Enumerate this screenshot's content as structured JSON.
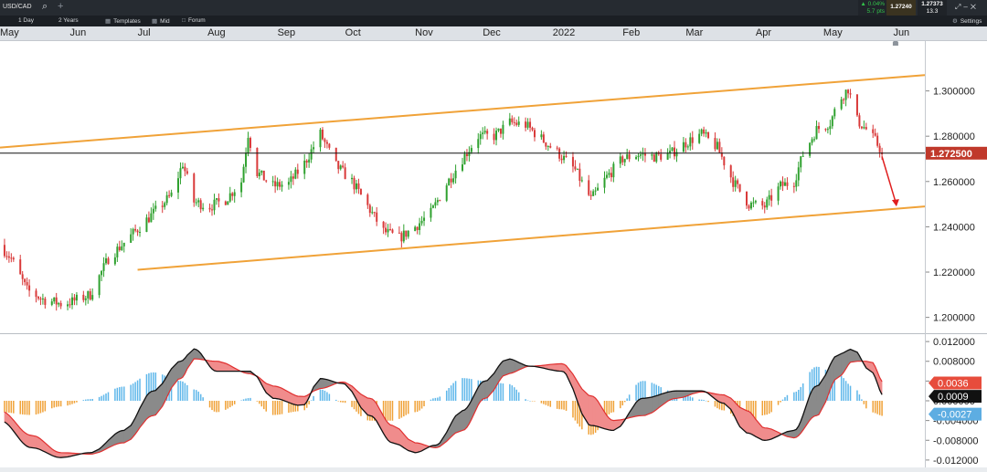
{
  "header": {
    "symbol": "USD/CAD",
    "change_pct": "0.04%",
    "change_pts": "5.7 pts",
    "bid": "1.27240",
    "ask": "1.27373",
    "spread": "13.3",
    "icons": [
      "search-icon",
      "plus-icon",
      "expand-icon",
      "close-icon",
      "gear-icon"
    ]
  },
  "toolbar": {
    "timeframe": "1 Day",
    "range": "2 Years",
    "templates": "Templates",
    "price_type": "Mid",
    "forum": "Forum",
    "settings": "Settings"
  },
  "colors": {
    "up": "#2fa12f",
    "down": "#d93a3a",
    "channel": "#f0a238",
    "current_line": "#111111",
    "price_tag": "#c0392b",
    "arrow": "#e01e1e",
    "macd_hist_pos": "#5fb7ea",
    "macd_hist_neg": "#f0a238",
    "macd_fill_up": "#8a8a8a",
    "macd_fill_down": "#f08c8c",
    "macd_line": "#111111",
    "signal_line": "#e03030"
  },
  "chart_data": [
    {
      "type": "candlestick",
      "x_axis": {
        "type": "date",
        "tick_labels": [
          "May",
          "Jun",
          "Jul",
          "Aug",
          "Sep",
          "Oct",
          "Nov",
          "Dec",
          "2022",
          "Feb",
          "Mar",
          "Apr",
          "May",
          "Jun"
        ],
        "range": [
          "2021-05-01",
          "2022-06-15"
        ]
      },
      "y_axis": {
        "ticks": [
          1.2,
          1.22,
          1.24,
          1.26,
          1.28,
          1.3
        ],
        "tick_labels": [
          "1.200000",
          "1.220000",
          "1.240000",
          "1.260000",
          "1.280000",
          "1.300000"
        ],
        "ylim": [
          1.193,
          1.322
        ],
        "position": "right"
      },
      "grid": false,
      "current_price": 1.2725,
      "current_price_label": "1.272500",
      "series": [
        {
          "name": "",
          "kind": "daily-candles",
          "path": [
            [
              "2021-05-01",
              1.232
            ],
            [
              "2021-05-06",
              1.226
            ],
            [
              "2021-05-13",
              1.212
            ],
            [
              "2021-05-20",
              1.208
            ],
            [
              "2021-05-28",
              1.206
            ],
            [
              "2021-06-02",
              1.207
            ],
            [
              "2021-06-10",
              1.21
            ],
            [
              "2021-06-18",
              1.226
            ],
            [
              "2021-06-25",
              1.233
            ],
            [
              "2021-07-02",
              1.24
            ],
            [
              "2021-07-09",
              1.247
            ],
            [
              "2021-07-16",
              1.254
            ],
            [
              "2021-07-21",
              1.268
            ],
            [
              "2021-07-26",
              1.251
            ],
            [
              "2021-08-02",
              1.249
            ],
            [
              "2021-08-09",
              1.252
            ],
            [
              "2021-08-16",
              1.26
            ],
            [
              "2021-08-19",
              1.281
            ],
            [
              "2021-08-23",
              1.264
            ],
            [
              "2021-08-30",
              1.258
            ],
            [
              "2021-09-06",
              1.259
            ],
            [
              "2021-09-13",
              1.268
            ],
            [
              "2021-09-20",
              1.281
            ],
            [
              "2021-09-27",
              1.267
            ],
            [
              "2021-10-04",
              1.26
            ],
            [
              "2021-10-11",
              1.249
            ],
            [
              "2021-10-18",
              1.238
            ],
            [
              "2021-10-25",
              1.235
            ],
            [
              "2021-11-01",
              1.24
            ],
            [
              "2021-11-08",
              1.246
            ],
            [
              "2021-11-15",
              1.259
            ],
            [
              "2021-11-22",
              1.27
            ],
            [
              "2021-11-29",
              1.28
            ],
            [
              "2021-12-06",
              1.28
            ],
            [
              "2021-12-13",
              1.286
            ],
            [
              "2021-12-20",
              1.285
            ],
            [
              "2021-12-28",
              1.278
            ],
            [
              "2022-01-04",
              1.272
            ],
            [
              "2022-01-11",
              1.265
            ],
            [
              "2022-01-18",
              1.252
            ],
            [
              "2022-01-25",
              1.262
            ],
            [
              "2022-02-01",
              1.27
            ],
            [
              "2022-02-08",
              1.272
            ],
            [
              "2022-02-15",
              1.271
            ],
            [
              "2022-02-22",
              1.272
            ],
            [
              "2022-03-01",
              1.277
            ],
            [
              "2022-03-08",
              1.281
            ],
            [
              "2022-03-15",
              1.275
            ],
            [
              "2022-03-22",
              1.26
            ],
            [
              "2022-03-29",
              1.25
            ],
            [
              "2022-04-05",
              1.249
            ],
            [
              "2022-04-12",
              1.258
            ],
            [
              "2022-04-18",
              1.26
            ],
            [
              "2022-04-22",
              1.272
            ],
            [
              "2022-04-28",
              1.283
            ],
            [
              "2022-05-04",
              1.286
            ],
            [
              "2022-05-08",
              1.296
            ],
            [
              "2022-05-12",
              1.301
            ],
            [
              "2022-05-16",
              1.287
            ],
            [
              "2022-05-20",
              1.283
            ],
            [
              "2022-05-24",
              1.278
            ],
            [
              "2022-05-27",
              1.273
            ]
          ],
          "volatility": 0.0042
        }
      ],
      "annotations": [
        {
          "type": "trendline",
          "name": "channel-upper",
          "points": [
            [
              "2021-05-01",
              1.275
            ],
            [
              "2022-06-15",
              1.307
            ]
          ]
        },
        {
          "type": "trendline",
          "name": "channel-lower",
          "points": [
            [
              "2021-07-01",
              1.221
            ],
            [
              "2022-06-15",
              1.249
            ]
          ]
        },
        {
          "type": "horizontal-line",
          "name": "current-price-line",
          "y": 1.2725
        },
        {
          "type": "arrow",
          "name": "projection-arrow",
          "from": [
            "2022-05-27",
            1.271
          ],
          "to": [
            "2022-06-02",
            1.249
          ]
        },
        {
          "type": "marker",
          "name": "event-marker",
          "at": [
            "2022-06-02",
            1.322
          ]
        }
      ]
    },
    {
      "type": "macd",
      "y_axis": {
        "ticks": [
          0.012,
          0.008,
          0.004,
          0,
          -0.004,
          -0.008,
          -0.012
        ],
        "tick_labels": [
          "0.012000",
          "0.008000",
          "0.004000",
          "0.000000",
          "-0.004000",
          "-0.008000",
          "-0.012000"
        ],
        "ylim": [
          -0.0135,
          0.0135
        ],
        "position": "right"
      },
      "grid": false,
      "series": [
        {
          "name": "",
          "kind": "macd-line",
          "path": [
            [
              "2021-05-01",
              -0.004
            ],
            [
              "2021-05-15",
              -0.0095
            ],
            [
              "2021-05-28",
              -0.0115
            ],
            [
              "2021-06-10",
              -0.0105
            ],
            [
              "2021-06-25",
              -0.006
            ],
            [
              "2021-07-08",
              0.002
            ],
            [
              "2021-07-20",
              0.008
            ],
            [
              "2021-07-26",
              0.0105
            ],
            [
              "2021-08-05",
              0.006
            ],
            [
              "2021-08-20",
              0.006
            ],
            [
              "2021-08-30",
              0.0005
            ],
            [
              "2021-09-12",
              -0.001
            ],
            [
              "2021-09-20",
              0.0045
            ],
            [
              "2021-09-30",
              0.0035
            ],
            [
              "2021-10-12",
              -0.003
            ],
            [
              "2021-10-22",
              -0.0085
            ],
            [
              "2021-11-01",
              -0.0105
            ],
            [
              "2021-11-10",
              -0.009
            ],
            [
              "2021-11-22",
              -0.002
            ],
            [
              "2021-12-02",
              0.004
            ],
            [
              "2021-12-12",
              0.0085
            ],
            [
              "2021-12-22",
              0.007
            ],
            [
              "2022-01-05",
              0.006
            ],
            [
              "2022-01-18",
              -0.005
            ],
            [
              "2022-01-28",
              -0.006
            ],
            [
              "2022-02-10",
              0.0005
            ],
            [
              "2022-02-25",
              0.002
            ],
            [
              "2022-03-08",
              0.002
            ],
            [
              "2022-03-18",
              -0.0005
            ],
            [
              "2022-03-28",
              -0.0065
            ],
            [
              "2022-04-05",
              -0.008
            ],
            [
              "2022-04-18",
              -0.006
            ],
            [
              "2022-04-28",
              0.003
            ],
            [
              "2022-05-08",
              0.0095
            ],
            [
              "2022-05-14",
              0.0105
            ],
            [
              "2022-05-22",
              0.006
            ],
            [
              "2022-05-28",
              0.0009
            ]
          ]
        },
        {
          "name": "",
          "kind": "signal-line",
          "path": [
            [
              "2021-05-01",
              -0.002
            ],
            [
              "2021-05-15",
              -0.007
            ],
            [
              "2021-05-28",
              -0.0105
            ],
            [
              "2021-06-10",
              -0.0108
            ],
            [
              "2021-06-25",
              -0.0085
            ],
            [
              "2021-07-08",
              -0.003
            ],
            [
              "2021-07-20",
              0.0045
            ],
            [
              "2021-07-26",
              0.0085
            ],
            [
              "2021-08-05",
              0.008
            ],
            [
              "2021-08-20",
              0.0055
            ],
            [
              "2021-08-30",
              0.003
            ],
            [
              "2021-09-12",
              0.0008
            ],
            [
              "2021-09-20",
              0.0025
            ],
            [
              "2021-09-30",
              0.0038
            ],
            [
              "2021-10-12",
              0.0005
            ],
            [
              "2021-10-22",
              -0.005
            ],
            [
              "2021-11-01",
              -0.0085
            ],
            [
              "2021-11-10",
              -0.0095
            ],
            [
              "2021-11-22",
              -0.006
            ],
            [
              "2021-12-02",
              0.0005
            ],
            [
              "2021-12-12",
              0.0055
            ],
            [
              "2021-12-22",
              0.007
            ],
            [
              "2022-01-05",
              0.0075
            ],
            [
              "2022-01-18",
              0.001
            ],
            [
              "2022-01-28",
              -0.004
            ],
            [
              "2022-02-10",
              -0.003
            ],
            [
              "2022-02-25",
              0.0005
            ],
            [
              "2022-03-08",
              0.0018
            ],
            [
              "2022-03-18",
              0.0012
            ],
            [
              "2022-03-28",
              -0.002
            ],
            [
              "2022-04-05",
              -0.0055
            ],
            [
              "2022-04-18",
              -0.0075
            ],
            [
              "2022-04-28",
              -0.003
            ],
            [
              "2022-05-08",
              0.005
            ],
            [
              "2022-05-14",
              0.008
            ],
            [
              "2022-05-22",
              0.008
            ],
            [
              "2022-05-28",
              0.0036
            ]
          ]
        }
      ],
      "tags": [
        {
          "name": "signal-tag",
          "value": "0.0036",
          "y": 0.0036,
          "color": "#e74c3c"
        },
        {
          "name": "macd-tag",
          "value": "0.0009",
          "y": 0.0009,
          "color": "#111111"
        },
        {
          "name": "histogram-tag",
          "value": "-0.0027",
          "y": -0.0027,
          "color": "#5dade2"
        }
      ]
    }
  ]
}
